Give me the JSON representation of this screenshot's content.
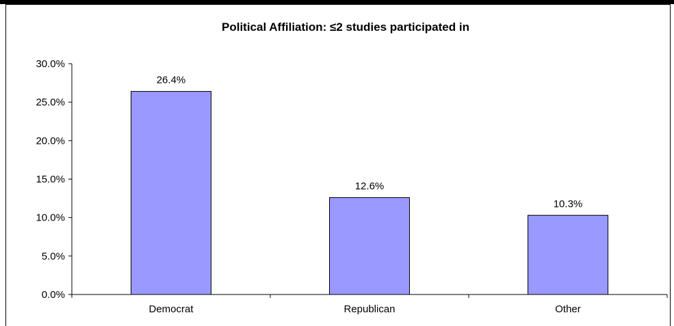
{
  "chart_data": {
    "type": "bar",
    "title": "Political Affiliation: ≤2 studies participated in",
    "categories": [
      "Democrat",
      "Republican",
      "Other"
    ],
    "values": [
      26.4,
      12.6,
      10.3
    ],
    "data_labels": [
      "26.4%",
      "12.6%",
      "10.3%"
    ],
    "xlabel": "",
    "ylabel": "",
    "ylim": [
      0,
      30
    ],
    "yticks": [
      0,
      5,
      10,
      15,
      20,
      25,
      30
    ],
    "ytick_labels": [
      "0.0%",
      "5.0%",
      "10.0%",
      "15.0%",
      "20.0%",
      "25.0%",
      "30.0%"
    ],
    "grid": false,
    "legend": "none",
    "colors": {
      "bar_fill": "#9999ff",
      "bar_stroke": "#000000",
      "axis": "#000000"
    }
  }
}
